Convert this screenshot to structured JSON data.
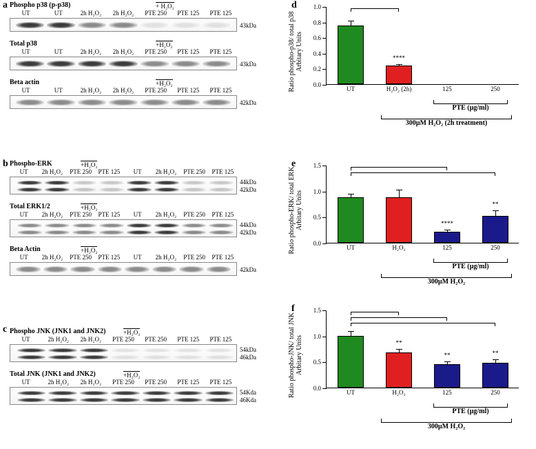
{
  "colors": {
    "green": "#1f8a1f",
    "red": "#e02020",
    "navy": "#1a1a8a",
    "axis": "#000000",
    "bg": "#ffffff"
  },
  "panel_letters": {
    "a": "a",
    "b": "b",
    "c": "c",
    "d": "d",
    "e": "e",
    "f": "f"
  },
  "blots": {
    "a": [
      {
        "title": "Phospho p38 (p-p38)",
        "h2o2_over": "+ H₂O₂",
        "lanes": [
          "UT",
          "UT",
          "2h H₂O₂",
          "2h H₂O₂",
          "PTE 250",
          "PTE 125",
          "PTE 125"
        ],
        "intens": [
          "strong",
          "strong",
          "med",
          "med",
          "vfaint",
          "vfaint",
          "vfaint"
        ],
        "kda": "43kDa"
      },
      {
        "title": "Total p38",
        "h2o2_over": "+H₂O₂",
        "lanes": [
          "UT",
          "UT",
          "2h H₂O₂",
          "2h H₂O₂",
          "PTE 250",
          "PTE 125",
          "PTE 125"
        ],
        "intens": [
          "strong",
          "strong",
          "strong",
          "strong",
          "med",
          "med",
          "med"
        ],
        "kda": "43kDa"
      },
      {
        "title": "Beta actin",
        "h2o2_over": "+H₂O₂",
        "lanes": [
          "UT",
          "UT",
          "2h H₂O₂",
          "2h H₂O₂",
          "PTE 250",
          "PTE 125",
          "PTE 125"
        ],
        "intens": [
          "med",
          "med",
          "med",
          "med",
          "med",
          "med",
          "med"
        ],
        "kda": "42kDa"
      }
    ],
    "b": [
      {
        "title": "Phospho-ERK",
        "h2o2_over": "+H₂O₂",
        "double": true,
        "lanes": [
          "UT",
          "2h H₂O₂",
          "PTE 250",
          "PTE 125",
          "UT",
          "2h H₂O₂",
          "PTE 250",
          "PTE 125"
        ],
        "intens": [
          "strong",
          "strong",
          "faint",
          "faint",
          "strong",
          "strong",
          "faint",
          "faint"
        ],
        "kda": "44kDa",
        "kda2": "42kDa"
      },
      {
        "title": "Total ERK1/2",
        "h2o2_over": "+H₂O₂",
        "double": true,
        "lanes": [
          "UT",
          "2h H₂O₂",
          "PTE 250",
          "PTE 125",
          "UT",
          "2h H₂O₂",
          "PTE 250",
          "PTE 125"
        ],
        "intens": [
          "med",
          "med",
          "med",
          "med",
          "strong",
          "strong",
          "med",
          "med"
        ],
        "kda": "44kDa",
        "kda2": "42kDa"
      },
      {
        "title": "Beta Actin",
        "h2o2_over": "+H₂O₂",
        "lanes": [
          "UT",
          "2h H₂O₂",
          "PTE 250",
          "PTE 125",
          "UT",
          "2h H₂O₂",
          "PTE 250",
          "PTE 125"
        ],
        "intens": [
          "med",
          "med",
          "med",
          "med",
          "med",
          "med",
          "med",
          "med"
        ],
        "kda": "42kDa"
      }
    ],
    "c": [
      {
        "title": "Phospho JNK (JNK1 and JNK2)",
        "h2o2_over": "+H₂O₂",
        "double": true,
        "lanes": [
          "UT",
          "2h H₂O₂",
          "2h H₂O₂",
          "PTE 250",
          "PTE 250",
          "PTE 125",
          "PTE 125"
        ],
        "intens": [
          "strong",
          "strong",
          "strong",
          "vfaint",
          "vfaint",
          "vfaint",
          "vfaint"
        ],
        "kda": "54kDa",
        "kda2": "46kDa"
      },
      {
        "title": "Total JNK (JNK1 and JNK2)",
        "h2o2_over": "+H₂O₂",
        "double": true,
        "lanes": [
          "UT",
          "2h H₂O₂",
          "2h H₂O₂",
          "PTE 250",
          "PTE 250",
          "PTE 125",
          "PTE 125"
        ],
        "intens": [
          "strong",
          "strong",
          "strong",
          "strong",
          "strong",
          "strong",
          "strong"
        ],
        "kda": "54Kda",
        "kda2": "46Kda"
      }
    ]
  },
  "charts": {
    "d": {
      "ylab": "Ratio phospho-p38/ total p38\nArbitary Units",
      "ymax": 1.0,
      "ytick_step": 0.2,
      "bars": [
        {
          "label": "UT",
          "value": 0.75,
          "err": 0.07,
          "color": "green"
        },
        {
          "label": "H₂O₂ (2h)",
          "value": 0.24,
          "err": 0.03,
          "color": "red",
          "sig": "****"
        },
        {
          "label": "125",
          "value": 0.0,
          "err": 0,
          "color": "navy"
        },
        {
          "label": "250",
          "value": 0.0,
          "err": 0,
          "color": "navy"
        }
      ],
      "pte_label": "PTE (µg/ml)",
      "treatment_label": "300µM H₂O₂ (2h treatment)"
    },
    "e": {
      "ylab": "Ratio phospho-ERK/ total ERK\nArbitary Units",
      "ymax": 1.5,
      "ytick_step": 0.5,
      "bars": [
        {
          "label": "UT",
          "value": 0.88,
          "err": 0.07,
          "color": "green"
        },
        {
          "label": "H₂O₂",
          "value": 0.88,
          "err": 0.15,
          "color": "red"
        },
        {
          "label": "125",
          "value": 0.21,
          "err": 0.05,
          "color": "navy",
          "sig": "****"
        },
        {
          "label": "250",
          "value": 0.52,
          "err": 0.12,
          "color": "navy",
          "sig": "**"
        }
      ],
      "pte_label": "PTE (µg/ml)",
      "treatment_label": "300µM H₂O₂"
    },
    "f": {
      "ylab": "Ratio phospho-JNK/ total JNK\nArbitary Units",
      "ymax": 1.5,
      "ytick_step": 0.5,
      "bars": [
        {
          "label": "UT",
          "value": 1.0,
          "err": 0.1,
          "color": "green"
        },
        {
          "label": "H₂O₂",
          "value": 0.68,
          "err": 0.08,
          "color": "red",
          "sig": "**"
        },
        {
          "label": "125",
          "value": 0.45,
          "err": 0.07,
          "color": "navy",
          "sig": "**"
        },
        {
          "label": "250",
          "value": 0.48,
          "err": 0.08,
          "color": "navy",
          "sig": "**"
        }
      ],
      "pte_label": "PTE (µg/ml)",
      "treatment_label": "300µM H₂O₂"
    }
  }
}
